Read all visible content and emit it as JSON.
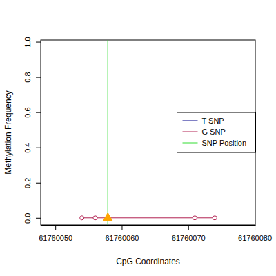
{
  "chart_data": {
    "type": "scatter",
    "x_label": "CpG Coordinates",
    "y_label": "Methylation Frequency",
    "xlim": [
      61760047.8,
      61760080.1
    ],
    "xticks": [
      61760050,
      61760060,
      61760070,
      61760080
    ],
    "ylim": [
      -0.04,
      1.01
    ],
    "yticks": [
      {
        "value": 0,
        "label": "0.0"
      },
      {
        "value": 0.2,
        "label": "0.2"
      },
      {
        "value": 0.4,
        "label": "0.4"
      },
      {
        "value": 0.6,
        "label": "0.6"
      },
      {
        "value": 0.8,
        "label": "0.8"
      },
      {
        "value": 1,
        "label": "1.0"
      }
    ],
    "legend": "right",
    "series": [
      {
        "name": "T SNP",
        "type": "line",
        "color": "#00008b",
        "marker": "circle",
        "line_style": "solid",
        "x": [
          61760054,
          61760056,
          61760058,
          61760071,
          61760074
        ],
        "values": [
          null,
          null,
          null,
          null,
          null
        ]
      },
      {
        "name": "G SNP",
        "type": "line",
        "color": "#b22252",
        "marker": "circle",
        "line_style": "solid",
        "x": [
          61760054,
          61760056,
          61760058,
          61760071,
          61760074
        ],
        "values": [
          0,
          0,
          0,
          0,
          0
        ]
      },
      {
        "name": "SNP Position",
        "type": "vline",
        "color": "#33dd33",
        "colors": [
          "#ffa500"
        ],
        "marker": "triangle",
        "x": [
          61760057.9
        ],
        "values": [
          0
        ]
      }
    ]
  }
}
